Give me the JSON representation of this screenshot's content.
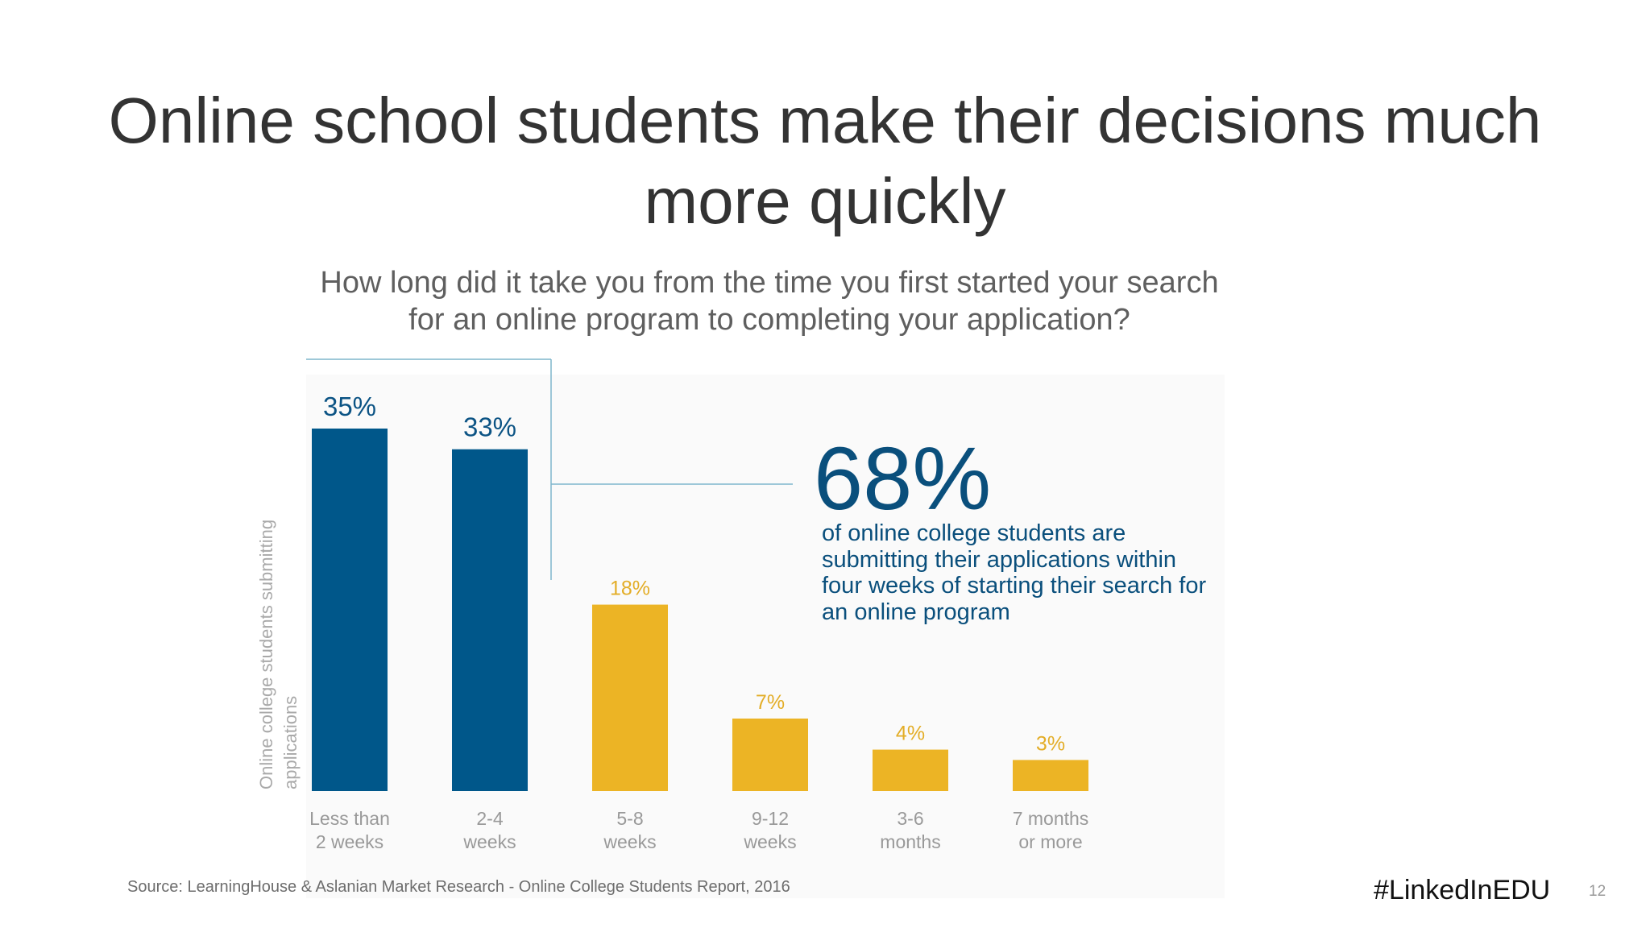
{
  "slide": {
    "title_lines": [
      "Online school students make their decisions much",
      "more quickly"
    ],
    "question_lines": [
      "How long did it take you from the time you first started your search",
      "for an online program to completing your application?"
    ],
    "callout": {
      "big": "68%",
      "lines": [
        "of online college students are",
        "submitting their applications within",
        "four weeks of starting their search for",
        "an online program"
      ]
    },
    "source": "Source: LearningHouse & Aslanian Market Research - Online College Students Report, 2016",
    "hashtag": "#LinkedInEDU",
    "page_number": "12"
  },
  "chart_data": {
    "type": "bar",
    "title": "How long did it take you from the time you first started your search for an online program to completing your application?",
    "ylabel_lines": [
      "Online college students submitting",
      "applications"
    ],
    "xlabel": "",
    "categories": [
      [
        "Less than",
        "2 weeks"
      ],
      [
        "2-4",
        "weeks"
      ],
      [
        "5-8",
        "weeks"
      ],
      [
        "9-12",
        "weeks"
      ],
      [
        "3-6",
        "months"
      ],
      [
        "7 months",
        "or more"
      ]
    ],
    "values": [
      35,
      33,
      18,
      7,
      4,
      3
    ],
    "value_labels": [
      "35%",
      "33%",
      "18%",
      "7%",
      "4%",
      "3%"
    ],
    "highlight_first_n": 2,
    "colors": {
      "highlight": "#00578a",
      "highlight_label": "#0b5384",
      "other": "#ecb425",
      "other_label": "#e3ad27",
      "bracket": "#7eb6cc",
      "panel": "#fafafa"
    },
    "ylim": [
      0,
      35
    ],
    "grid": false,
    "legend": "none"
  }
}
